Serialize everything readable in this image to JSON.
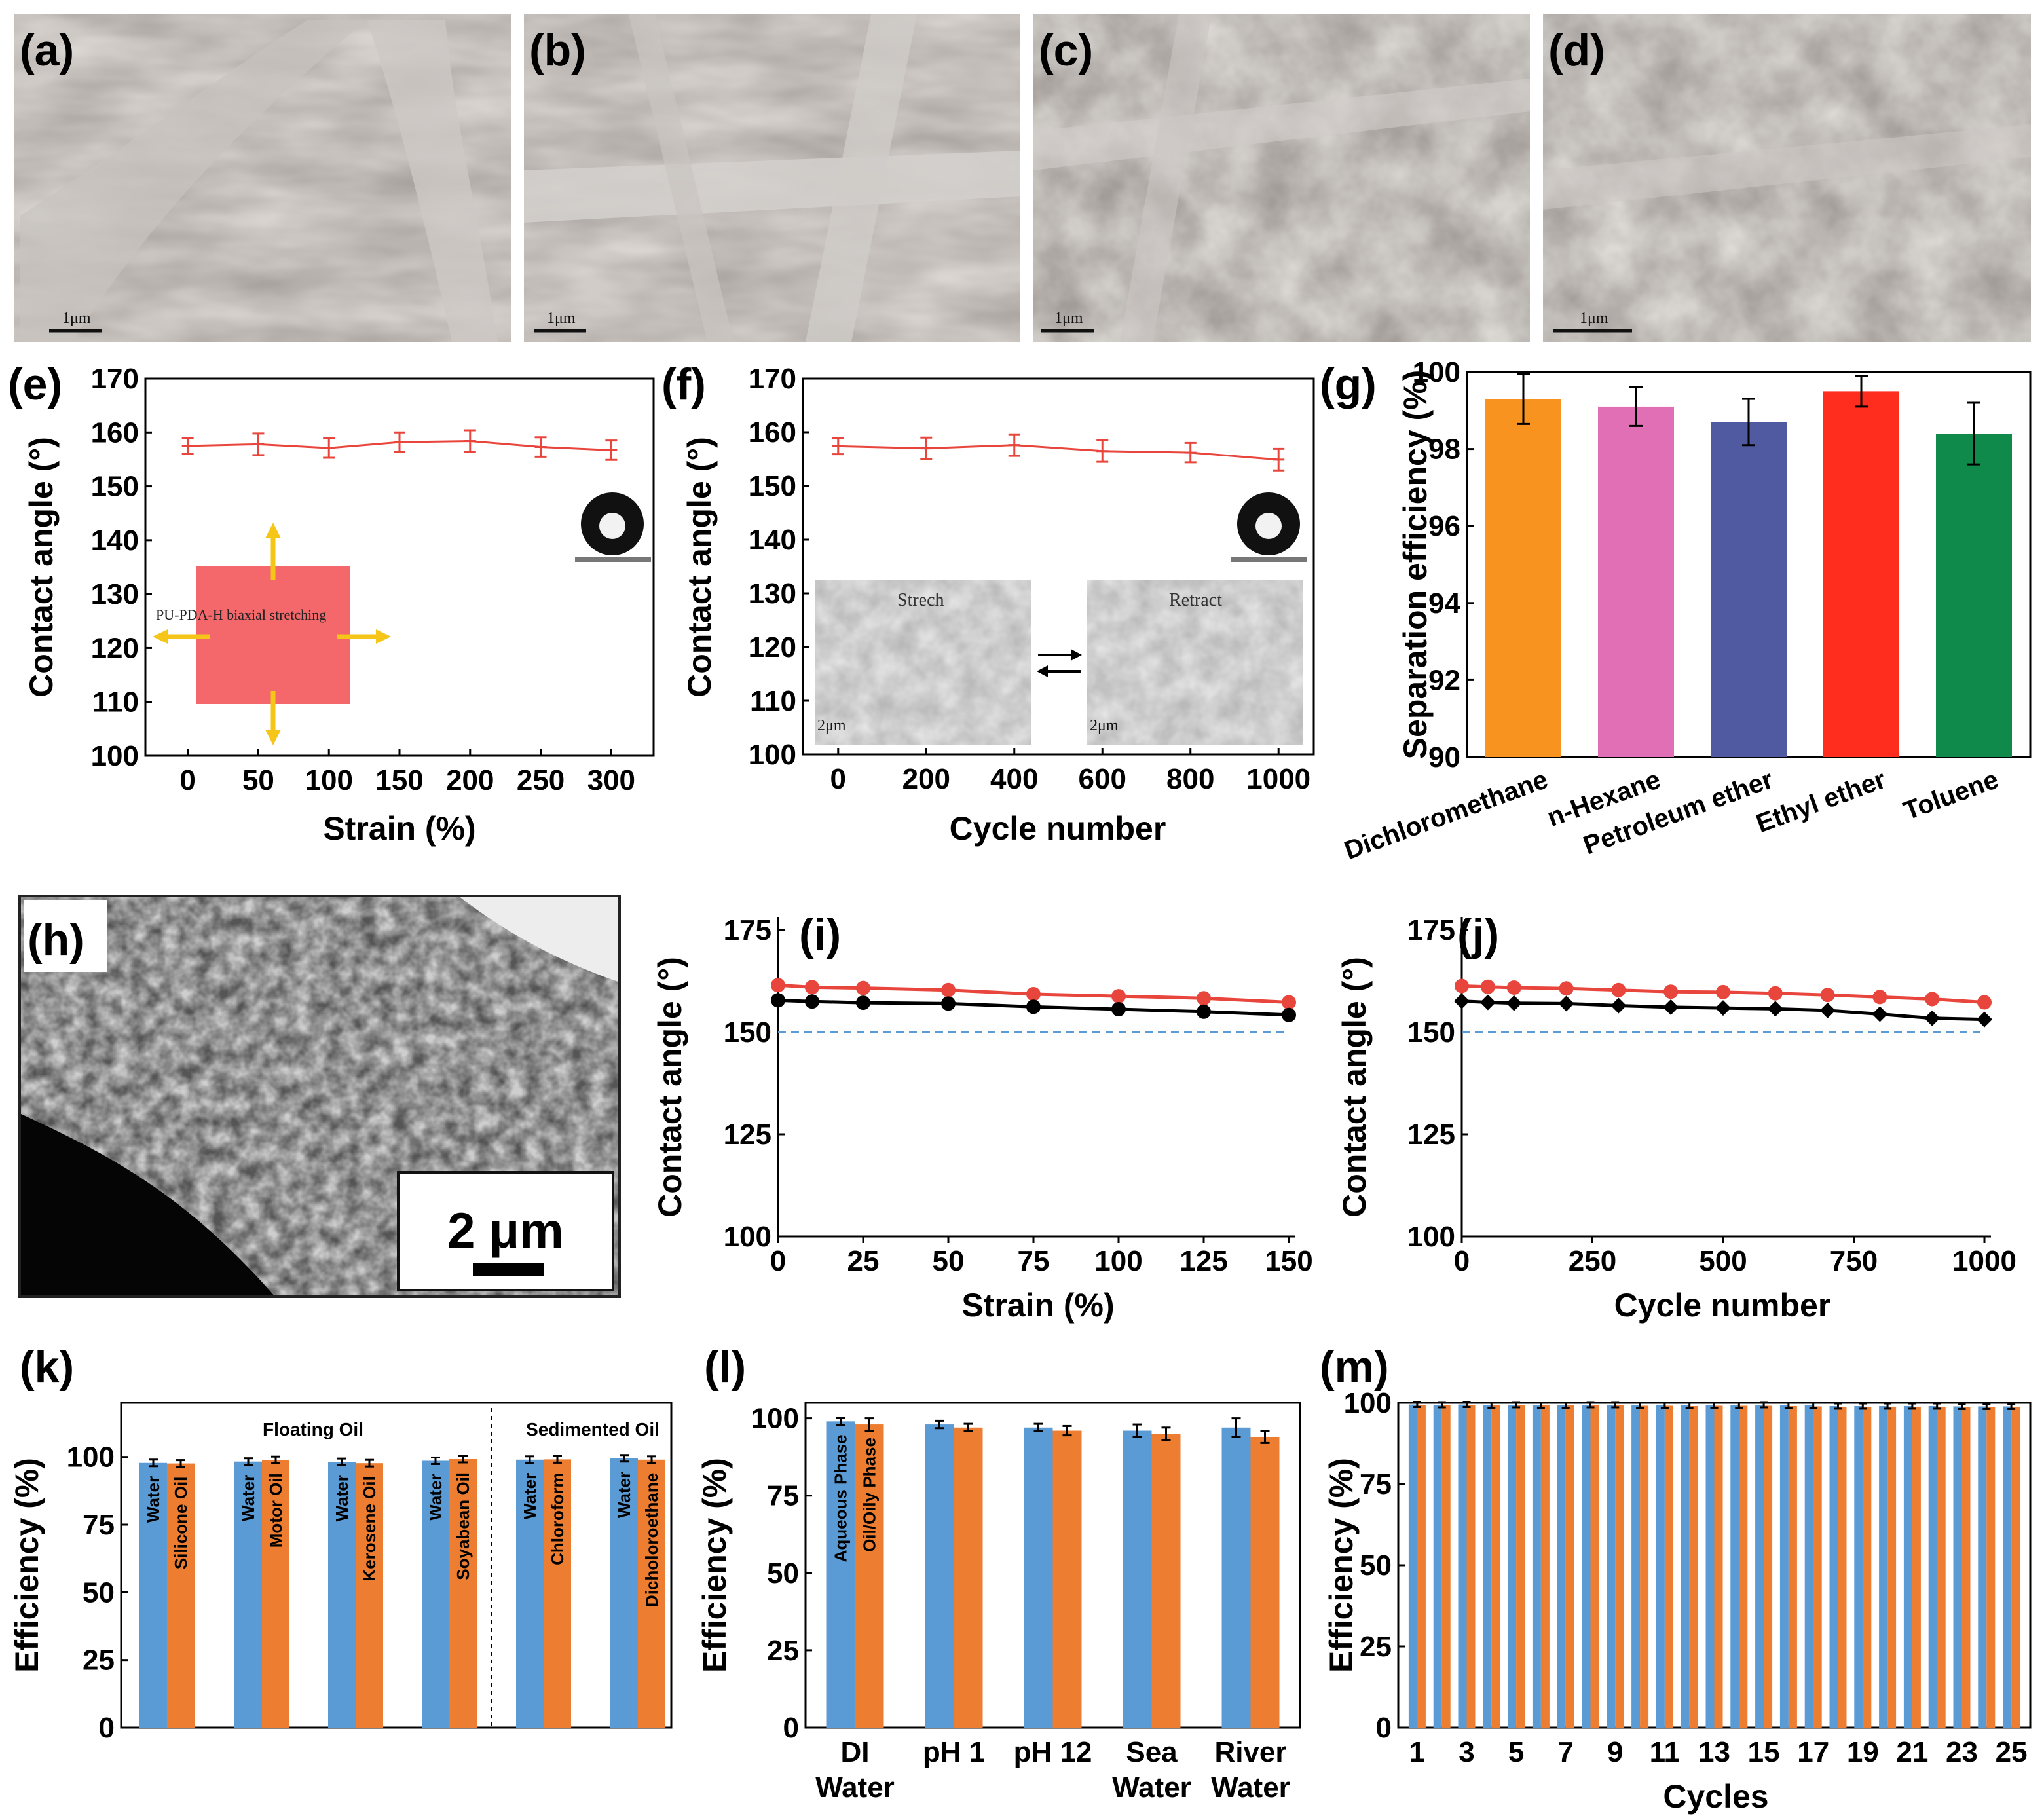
{
  "figure": {
    "panel_labels": [
      "(a)",
      "(b)",
      "(c)",
      "(d)",
      "(e)",
      "(f)",
      "(g)",
      "(h)",
      "(i)",
      "(j)",
      "(k)",
      "(l)",
      "(m)"
    ],
    "sem": {
      "a": {
        "scale": "1μm"
      },
      "b": {
        "scale": "1μm"
      },
      "c": {
        "scale": "1μm"
      },
      "d": {
        "scale": "1μm"
      },
      "h": {
        "scale": "2 μm"
      }
    },
    "e_inset_text": "PU-PDA-H biaxial stretching",
    "f_inset": {
      "left": "Strech",
      "right": "Retract",
      "scale": "2μm"
    },
    "colors": {
      "red": "#e8453c",
      "black": "#000000",
      "blue": "#5b9bd5",
      "orange": "#ed7d31",
      "dashed": "#5b9bd5"
    }
  },
  "chart_data": [
    {
      "id": "e",
      "type": "line",
      "xlabel": "Strain (%)",
      "ylabel": "Contact angle (°)",
      "x": [
        0,
        50,
        100,
        150,
        200,
        250,
        300
      ],
      "series": [
        {
          "name": "contact angle",
          "values": [
            157.5,
            157.8,
            157.1,
            158.2,
            158.4,
            157.3,
            156.7
          ],
          "errors": [
            1.5,
            2,
            1.8,
            1.8,
            2,
            1.8,
            1.8
          ]
        }
      ],
      "xlim": [
        -30,
        330
      ],
      "ylim": [
        100,
        170
      ],
      "xticks": [
        0,
        50,
        100,
        150,
        200,
        250,
        300
      ],
      "yticks": [
        100,
        110,
        120,
        130,
        140,
        150,
        160,
        170
      ]
    },
    {
      "id": "f",
      "type": "line",
      "xlabel": "Cycle number",
      "ylabel": "Contact angle (°)",
      "x": [
        0,
        200,
        400,
        600,
        800,
        1000
      ],
      "series": [
        {
          "name": "contact angle",
          "values": [
            157.4,
            157,
            157.6,
            156.5,
            156.2,
            154.9
          ],
          "errors": [
            1.5,
            2,
            2,
            2,
            1.8,
            2
          ]
        }
      ],
      "xlim": [
        -80,
        1080
      ],
      "ylim": [
        100,
        170
      ],
      "xticks": [
        0,
        200,
        400,
        600,
        800,
        1000
      ],
      "yticks": [
        100,
        110,
        120,
        130,
        140,
        150,
        160,
        170
      ]
    },
    {
      "id": "g",
      "type": "bar",
      "ylabel": "Separation efficiency (%)",
      "categories": [
        "Dichloromethane",
        "n-Hexane",
        "Petroleum ether",
        "Ethyl ether",
        "Toluene"
      ],
      "values": [
        99.3,
        99.1,
        98.7,
        99.5,
        98.4
      ],
      "errors": [
        0.65,
        0.5,
        0.6,
        0.4,
        0.8
      ],
      "colors": [
        "#f7931e",
        "#e06fb5",
        "#4f5aa1",
        "#ff2d1e",
        "#0f8a4a"
      ],
      "ylim": [
        90,
        100
      ],
      "yticks": [
        90,
        92,
        94,
        96,
        98,
        100
      ]
    },
    {
      "id": "i",
      "type": "line",
      "xlabel": "Strain (%)",
      "ylabel": "Contact angle (°)",
      "x": [
        0,
        10,
        25,
        50,
        75,
        100,
        125,
        150
      ],
      "series": [
        {
          "name": "red",
          "values": [
            161.5,
            161,
            160.8,
            160.3,
            159.3,
            158.8,
            158.3,
            157.3
          ]
        },
        {
          "name": "black",
          "values": [
            157.8,
            157.5,
            157.2,
            157,
            156.2,
            155.6,
            155,
            154.2
          ]
        }
      ],
      "reference_line": 150,
      "xlim": [
        0,
        150
      ],
      "ylim": [
        100,
        175
      ],
      "xticks": [
        0,
        25,
        50,
        75,
        100,
        125,
        150
      ],
      "yticks": [
        100,
        125,
        150,
        175
      ]
    },
    {
      "id": "j",
      "type": "line",
      "xlabel": "Cycle number",
      "ylabel": "Contact angle (°)",
      "x": [
        0,
        50,
        100,
        200,
        300,
        400,
        500,
        600,
        700,
        800,
        900,
        1000
      ],
      "series": [
        {
          "name": "red",
          "values": [
            161.3,
            161.1,
            160.9,
            160.7,
            160.3,
            159.9,
            159.8,
            159.5,
            159.1,
            158.6,
            158.1,
            157.3
          ]
        },
        {
          "name": "black",
          "values": [
            157.6,
            157.3,
            157.1,
            157,
            156.5,
            156.1,
            155.9,
            155.7,
            155.3,
            154.4,
            153.4,
            153.1
          ]
        }
      ],
      "reference_line": 150,
      "xlim": [
        0,
        1000
      ],
      "ylim": [
        100,
        175
      ],
      "xticks": [
        0,
        250,
        500,
        750,
        1000
      ],
      "yticks": [
        100,
        125,
        150,
        175
      ]
    },
    {
      "id": "k",
      "type": "bar",
      "ylabel": "Efficiency (%)",
      "groups": [
        "Floating Oil",
        "Sedimented Oil"
      ],
      "pairs": [
        {
          "a": "Water",
          "b": "Silicone Oil",
          "va": 97.8,
          "vb": 97.6
        },
        {
          "a": "Water",
          "b": "Motor Oil",
          "va": 98.3,
          "vb": 98.9
        },
        {
          "a": "Water",
          "b": "Kerosene Oil",
          "va": 98.2,
          "vb": 97.7
        },
        {
          "a": "Water",
          "b": "Soyabean Oil",
          "va": 98.6,
          "vb": 99.2
        },
        {
          "a": "Water",
          "b": "Chloroform",
          "va": 99.0,
          "vb": 99.1
        },
        {
          "a": "Water",
          "b": "Dicholoroethane",
          "va": 99.5,
          "vb": 99.0
        }
      ],
      "ylim": [
        0,
        120
      ],
      "yticks": [
        0,
        25,
        50,
        75,
        100
      ]
    },
    {
      "id": "l",
      "type": "bar",
      "ylabel": "Efficiency (%)",
      "categories": [
        [
          "DI",
          "Water"
        ],
        [
          "pH 1",
          ""
        ],
        [
          "pH 12",
          ""
        ],
        [
          "Sea",
          "Water"
        ],
        [
          "River",
          "Water"
        ]
      ],
      "series": [
        {
          "name": "Aqueous Phase",
          "values": [
            99,
            98,
            97,
            96,
            97
          ],
          "errors": [
            1.2,
            1.2,
            1.2,
            2,
            3
          ]
        },
        {
          "name": "Oil/Oily Phase",
          "values": [
            98,
            97,
            96,
            95,
            94
          ],
          "errors": [
            2,
            1.2,
            1.5,
            2,
            2
          ]
        }
      ],
      "ylim": [
        0,
        105
      ],
      "yticks": [
        0,
        25,
        50,
        75,
        100
      ]
    },
    {
      "id": "m",
      "type": "bar",
      "xlabel": "Cycles",
      "ylabel": "Efficiency (%)",
      "x": [
        1,
        2,
        3,
        4,
        5,
        6,
        7,
        8,
        9,
        10,
        11,
        12,
        13,
        14,
        15,
        16,
        17,
        18,
        19,
        20,
        21,
        22,
        23,
        24,
        25
      ],
      "xticks": [
        1,
        3,
        5,
        7,
        9,
        11,
        13,
        15,
        17,
        19,
        21,
        23,
        25
      ],
      "series": [
        {
          "name": "blue",
          "values": [
            99.5,
            99.4,
            99.5,
            99.3,
            99.4,
            99.3,
            99.3,
            99.4,
            99.4,
            99.3,
            99.2,
            99.2,
            99.3,
            99.3,
            99.4,
            99.2,
            99.2,
            99.0,
            99.0,
            99.0,
            99.0,
            99.0,
            98.9,
            98.9,
            98.9
          ]
        },
        {
          "name": "orange",
          "values": [
            99.3,
            99.3,
            99.3,
            99.2,
            99.2,
            99.2,
            99.2,
            99.2,
            99.2,
            99.1,
            99.1,
            99.0,
            99.1,
            99.1,
            99.1,
            99.0,
            98.9,
            98.8,
            98.8,
            98.8,
            98.8,
            98.8,
            98.7,
            98.7,
            98.6
          ]
        }
      ],
      "ylim": [
        0,
        100
      ],
      "yticks": [
        0,
        25,
        50,
        75,
        100
      ]
    }
  ]
}
